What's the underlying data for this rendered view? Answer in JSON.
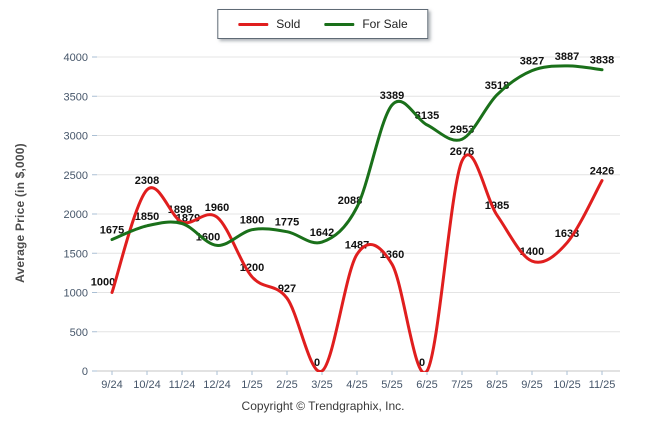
{
  "page": {
    "copyright": "Copyright © Trendgraphix, Inc."
  },
  "chart_data": {
    "type": "line",
    "title": "",
    "categories": [
      "9/24",
      "10/24",
      "11/24",
      "12/24",
      "1/25",
      "2/25",
      "3/25",
      "4/25",
      "5/25",
      "6/25",
      "7/25",
      "8/25",
      "9/25",
      "10/25",
      "11/25"
    ],
    "series": [
      {
        "name": "Sold",
        "color": "#e01e1e",
        "values": [
          1000,
          2308,
          1898,
          1960,
          1200,
          927,
          0,
          1487,
          1360,
          0,
          2676,
          1985,
          1400,
          1633,
          2426
        ]
      },
      {
        "name": "For Sale",
        "color": "#1a701a",
        "values": [
          1675,
          1850,
          1879,
          1600,
          1800,
          1775,
          1642,
          2088,
          3389,
          3135,
          2953,
          3518,
          3827,
          3887,
          3838
        ]
      }
    ],
    "xlabel": "",
    "ylabel": "Average Price (in $,000)",
    "ylim": [
      0,
      4000
    ],
    "ytick_step": 500,
    "yticks": [
      0,
      500,
      1000,
      1500,
      2000,
      2500,
      3000,
      3500,
      4000
    ],
    "grid": "horizontal",
    "legend_position": "top-center",
    "line_style": "smooth-spline",
    "data_labels": true
  }
}
